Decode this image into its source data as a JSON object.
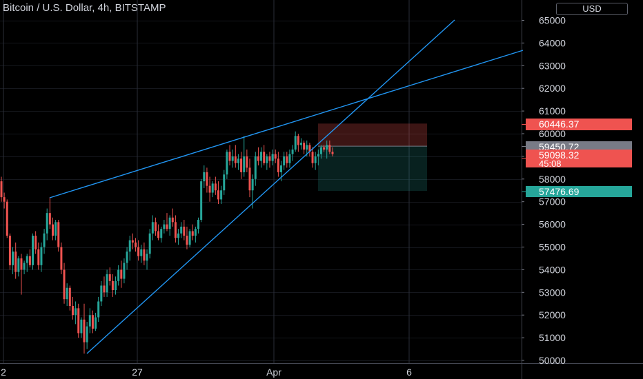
{
  "header": {
    "title": "Bitcoin / U.S. Dollar, 4h, BITSTAMP",
    "currency_button": "USD"
  },
  "colors": {
    "background": "#000000",
    "grid": "#2a2e39",
    "up": "#26a69a",
    "down": "#ef5350",
    "trendline": "#2196f3",
    "stop_zone": "rgba(239,83,80,0.25)",
    "target_zone": "rgba(38,166,154,0.2)"
  },
  "chart_data": {
    "type": "candlestick",
    "y_axis_ticks": [
      65000,
      64000,
      63000,
      62000,
      61000,
      60000,
      59000,
      58000,
      57000,
      56000,
      55000,
      54000,
      53000,
      52000,
      51000,
      50000
    ],
    "ylim": [
      49700,
      65900
    ],
    "x_axis_labels": [
      "2",
      "27",
      "Apr",
      "6"
    ],
    "price_labels": [
      {
        "name": "stop",
        "text": "60446.37",
        "value": 60446.37,
        "color": "#ef5350"
      },
      {
        "name": "entry",
        "text": "59450.72",
        "value": 59450.72,
        "color": "#787b86"
      },
      {
        "name": "last",
        "text": "59098.32",
        "countdown": "45:08",
        "value": 59098.32,
        "color": "#ef5350"
      },
      {
        "name": "target",
        "text": "57476.69",
        "value": 57476.69,
        "color": "#26a69a"
      }
    ],
    "position": {
      "entry": 59450.72,
      "stop": 60446.37,
      "target": 57476.69
    },
    "trendlines": [
      {
        "name": "upper-trendline",
        "points": [
          [
            0,
            57200
          ],
          [
            1,
            63700
          ]
        ]
      },
      {
        "name": "lower-trendline",
        "points": [
          [
            0,
            50300
          ],
          [
            1,
            65000
          ]
        ]
      }
    ],
    "candles_ohlc": [
      [
        57900,
        58100,
        57000,
        57200
      ],
      [
        57200,
        57400,
        56700,
        57000
      ],
      [
        57000,
        57100,
        55400,
        55500
      ],
      [
        55500,
        55600,
        54000,
        54200
      ],
      [
        54200,
        55000,
        53800,
        54800
      ],
      [
        54800,
        55200,
        53600,
        53900
      ],
      [
        53900,
        54600,
        53700,
        54500
      ],
      [
        54500,
        54700,
        52900,
        54000
      ],
      [
        54000,
        54400,
        53800,
        54300
      ],
      [
        54300,
        54700,
        53900,
        54600
      ],
      [
        54600,
        54900,
        54100,
        54200
      ],
      [
        54200,
        55600,
        54000,
        55500
      ],
      [
        55500,
        55700,
        54700,
        54900
      ],
      [
        54900,
        55200,
        54000,
        54200
      ],
      [
        54200,
        55200,
        53900,
        55000
      ],
      [
        55000,
        55800,
        54700,
        55600
      ],
      [
        55600,
        56700,
        55300,
        56500
      ],
      [
        56500,
        57200,
        55800,
        56000
      ],
      [
        56000,
        56300,
        55300,
        55500
      ],
      [
        55500,
        56200,
        55300,
        56100
      ],
      [
        56100,
        56200,
        54800,
        55000
      ],
      [
        55000,
        55200,
        53800,
        54000
      ],
      [
        54000,
        54300,
        52500,
        52700
      ],
      [
        52700,
        53400,
        52400,
        53200
      ],
      [
        53200,
        53300,
        52200,
        52400
      ],
      [
        52400,
        52800,
        51800,
        52000
      ],
      [
        52000,
        52600,
        51600,
        52300
      ],
      [
        52300,
        52500,
        51000,
        51200
      ],
      [
        51200,
        51900,
        51000,
        51800
      ],
      [
        51800,
        52500,
        50300,
        50800
      ],
      [
        50800,
        51700,
        50500,
        51500
      ],
      [
        51500,
        52300,
        51200,
        52000
      ],
      [
        52000,
        52200,
        51200,
        51400
      ],
      [
        51400,
        52100,
        51300,
        51900
      ],
      [
        51900,
        52800,
        51700,
        52600
      ],
      [
        52600,
        53500,
        52400,
        53300
      ],
      [
        53300,
        53700,
        52800,
        53000
      ],
      [
        53000,
        54000,
        52800,
        53800
      ],
      [
        53800,
        54100,
        53300,
        53500
      ],
      [
        53500,
        53800,
        52800,
        53100
      ],
      [
        53100,
        53700,
        52900,
        53500
      ],
      [
        53500,
        54200,
        53300,
        54000
      ],
      [
        54000,
        54400,
        53200,
        53600
      ],
      [
        53600,
        54500,
        53400,
        54300
      ],
      [
        54300,
        55000,
        54000,
        54800
      ],
      [
        54800,
        55500,
        54400,
        55300
      ],
      [
        55300,
        55600,
        54900,
        55200
      ],
      [
        55200,
        55400,
        54800,
        55000
      ],
      [
        55000,
        55300,
        54400,
        54600
      ],
      [
        54600,
        55100,
        54300,
        54900
      ],
      [
        54900,
        55200,
        54200,
        54400
      ],
      [
        54400,
        54900,
        54000,
        54700
      ],
      [
        54700,
        55800,
        54500,
        55600
      ],
      [
        55600,
        56400,
        55300,
        56100
      ],
      [
        56100,
        56300,
        55500,
        55700
      ],
      [
        55700,
        56000,
        55300,
        55400
      ],
      [
        55400,
        55900,
        55200,
        55800
      ],
      [
        55800,
        56200,
        55600,
        56000
      ],
      [
        56000,
        56500,
        55700,
        55800
      ],
      [
        55800,
        56400,
        55500,
        56300
      ],
      [
        56300,
        56700,
        55900,
        56100
      ],
      [
        56100,
        56400,
        55200,
        55400
      ],
      [
        55400,
        55800,
        55100,
        55600
      ],
      [
        55600,
        56100,
        55400,
        55900
      ],
      [
        55900,
        56200,
        55300,
        55500
      ],
      [
        55500,
        55900,
        54900,
        55100
      ],
      [
        55100,
        55800,
        55000,
        55700
      ],
      [
        55700,
        56000,
        55300,
        55500
      ],
      [
        55500,
        55900,
        55200,
        55800
      ],
      [
        55800,
        56300,
        55600,
        56200
      ],
      [
        56200,
        58000,
        56100,
        57900
      ],
      [
        57900,
        58600,
        57600,
        58300
      ],
      [
        58300,
        58500,
        57400,
        57700
      ],
      [
        57700,
        58100,
        57000,
        57400
      ],
      [
        57400,
        57900,
        57200,
        57800
      ],
      [
        57800,
        58100,
        57300,
        57500
      ],
      [
        57500,
        57900,
        56900,
        57100
      ],
      [
        57100,
        57700,
        56900,
        57500
      ],
      [
        57500,
        58400,
        57300,
        58200
      ],
      [
        58200,
        59300,
        58000,
        59200
      ],
      [
        59200,
        59500,
        58600,
        58800
      ],
      [
        58800,
        59300,
        58500,
        59000
      ],
      [
        59000,
        59500,
        58500,
        58700
      ],
      [
        58700,
        59100,
        58400,
        58900
      ],
      [
        58900,
        59200,
        58000,
        58300
      ],
      [
        58300,
        59900,
        58100,
        59000
      ],
      [
        59000,
        59300,
        58300,
        58500
      ],
      [
        58500,
        58900,
        57200,
        57500
      ],
      [
        57500,
        58200,
        56700,
        58000
      ],
      [
        58000,
        59200,
        57700,
        59000
      ],
      [
        59000,
        59400,
        58600,
        58800
      ],
      [
        58800,
        59400,
        58500,
        59200
      ],
      [
        59200,
        59500,
        58600,
        58700
      ],
      [
        58700,
        59100,
        58400,
        59000
      ],
      [
        59000,
        59200,
        58500,
        58800
      ],
      [
        58800,
        59300,
        58600,
        59100
      ],
      [
        59100,
        59300,
        58700,
        58900
      ],
      [
        58900,
        59200,
        58100,
        58300
      ],
      [
        58300,
        58800,
        57900,
        58600
      ],
      [
        58600,
        59200,
        58400,
        59000
      ],
      [
        59000,
        59200,
        58500,
        58700
      ],
      [
        58700,
        59300,
        58500,
        59100
      ],
      [
        59100,
        59500,
        58800,
        59300
      ],
      [
        59300,
        60100,
        59200,
        59900
      ],
      [
        59900,
        60000,
        59200,
        59500
      ],
      [
        59500,
        59800,
        59300,
        59600
      ],
      [
        59600,
        59700,
        59100,
        59300
      ],
      [
        59300,
        59700,
        59000,
        59500
      ],
      [
        59500,
        59600,
        59000,
        59200
      ],
      [
        59200,
        59400,
        58500,
        58700
      ],
      [
        58700,
        59200,
        58400,
        59000
      ],
      [
        59000,
        59300,
        58600,
        59100
      ],
      [
        59100,
        59500,
        58900,
        59400
      ],
      [
        59400,
        59500,
        59200,
        59300
      ],
      [
        59300,
        59700,
        58900,
        59500
      ],
      [
        59500,
        59700,
        59100,
        59200
      ],
      [
        59200,
        59400,
        59000,
        59100
      ]
    ]
  }
}
